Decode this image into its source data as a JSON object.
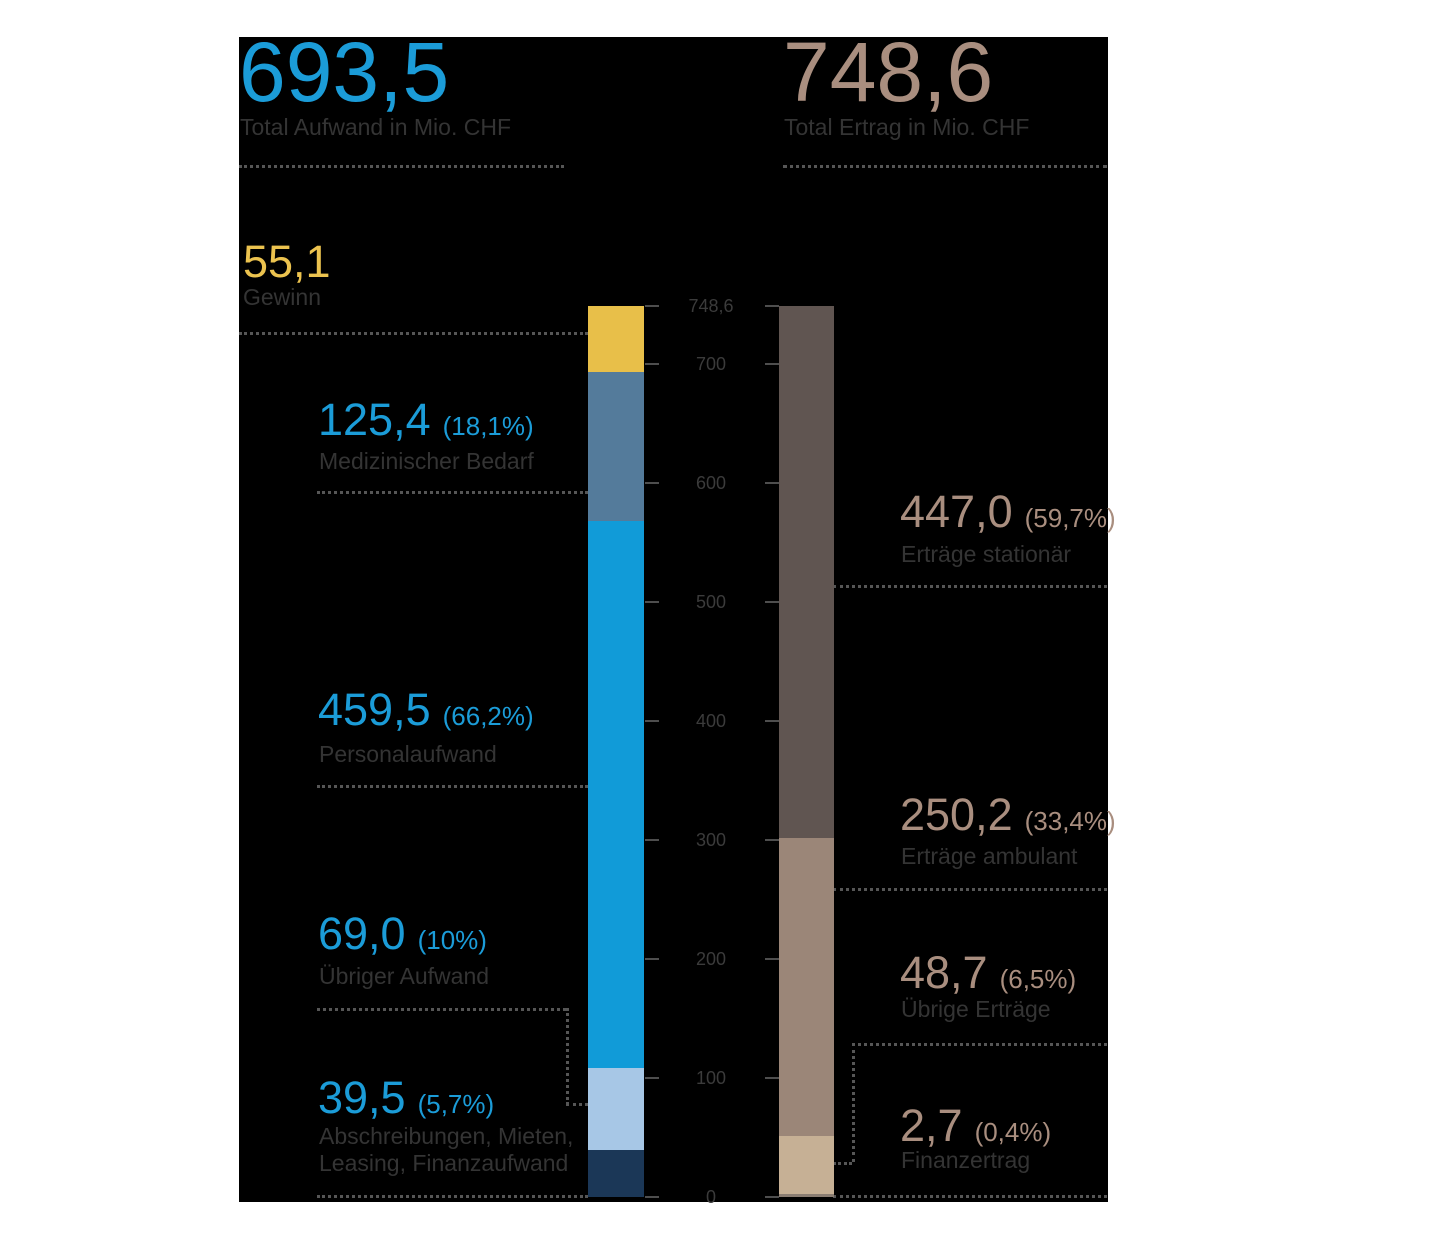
{
  "page": {
    "background": "#ffffff",
    "panel_background": "#000000"
  },
  "header": {
    "aufwand": {
      "value": "693,5",
      "label": "Total Aufwand in Mio. CHF",
      "accent": "#1b9cd8"
    },
    "ertrag": {
      "value": "748,6",
      "label": "Total Ertrag in Mio. CHF",
      "accent": "#a98e7f"
    },
    "gewinn": {
      "value": "55,1",
      "label": "Gewinn",
      "accent": "#ecc34f"
    }
  },
  "colors": {
    "label_text": "#343434",
    "axis_text": "#3b3b3b",
    "dotted_line": "#565656",
    "tick": "#4e4e4e"
  },
  "chart_data": {
    "type": "bar",
    "subtype": "two-stacked-columns",
    "unit": "Mio. CHF",
    "ylim": [
      0,
      748.6
    ],
    "grid": false,
    "legend_position": "none",
    "axis_ticks": [
      {
        "value": 748.6,
        "label": "748,6"
      },
      {
        "value": 700,
        "label": "700"
      },
      {
        "value": 600,
        "label": "600"
      },
      {
        "value": 500,
        "label": "500"
      },
      {
        "value": 400,
        "label": "400"
      },
      {
        "value": 300,
        "label": "300"
      },
      {
        "value": 200,
        "label": "200"
      },
      {
        "value": 100,
        "label": "100"
      },
      {
        "value": 0,
        "label": "0"
      }
    ],
    "series": [
      {
        "name": "Aufwand",
        "total": 693.5,
        "total_display": "693,5",
        "segments_top_to_bottom": [
          {
            "id": "gewinn",
            "label": "Gewinn",
            "value": 55.1,
            "display": "55,1",
            "pct": null,
            "color": "#e8bf49"
          },
          {
            "id": "medizinischer-bedarf",
            "label": "Medizinischer Bedarf",
            "value": 125.4,
            "display": "125,4",
            "pct": "(18,1%)",
            "color": "#547b9b"
          },
          {
            "id": "personalaufwand",
            "label": "Personalaufwand",
            "value": 459.5,
            "display": "459,5",
            "pct": "(66,2%)",
            "color": "#119bd8"
          },
          {
            "id": "uebriger-aufwand",
            "label": "Übriger Aufwand",
            "value": 69.0,
            "display": "69,0",
            "pct": "(10%)",
            "color": "#a7c7e6"
          },
          {
            "id": "abschreibungen",
            "label": "Abschreibungen, Mieten, Leasing, Finanzaufwand",
            "label_lines": [
              "Abschreibungen, Mieten,",
              "Leasing, Finanzaufwand"
            ],
            "value": 39.5,
            "display": "39,5",
            "pct": "(5,7%)",
            "color": "#1b3757"
          }
        ]
      },
      {
        "name": "Ertrag",
        "total": 748.6,
        "total_display": "748,6",
        "segments_top_to_bottom": [
          {
            "id": "ertraege-stationaer",
            "label": "Erträge stationär",
            "value": 447.0,
            "display": "447,0",
            "pct": "(59,7%)",
            "color": "#605551"
          },
          {
            "id": "ertraege-ambulant",
            "label": "Erträge ambulant",
            "value": 250.2,
            "display": "250,2",
            "pct": "(33,4%)",
            "color": "#9b8678"
          },
          {
            "id": "uebrige-ertraege",
            "label": "Übrige Erträge",
            "value": 48.7,
            "display": "48,7",
            "pct": "(6,5%)",
            "color": "#c6b095"
          },
          {
            "id": "finanzertrag",
            "label": "Finanzertrag",
            "value": 2.7,
            "display": "2,7",
            "pct": "(0,4%)",
            "color": "#8a7d72"
          }
        ]
      }
    ]
  }
}
